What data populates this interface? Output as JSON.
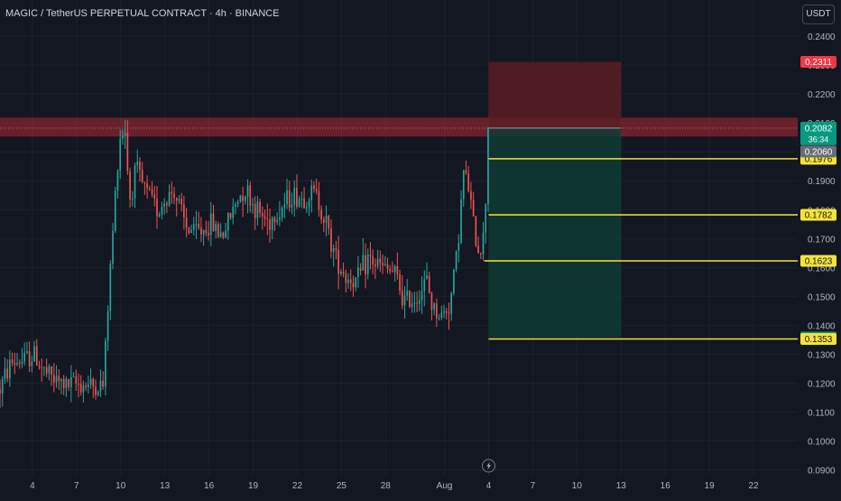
{
  "header": {
    "title": "MAGIC / TetherUS PERPETUAL CONTRACT · 4h · BINANCE",
    "currency": "USDT"
  },
  "colors": {
    "background": "#131722",
    "up": "#26a69a",
    "down": "#ef5350",
    "axis_text": "#b2b5be",
    "level_line": "#f5e33a",
    "resistance_zone": "#b22833",
    "stop_zone": "#5b1d24",
    "target_zone": "#0f3b33"
  },
  "chart_data": {
    "type": "candlestick",
    "title": "MAGIC / TetherUS PERPETUAL CONTRACT · 4h · BINANCE",
    "ylim": [
      0.088,
      0.2525
    ],
    "y_ticks": [
      "0.0900",
      "0.1000",
      "0.1100",
      "0.1200",
      "0.1300",
      "0.1400",
      "0.1500",
      "0.1600",
      "0.1700",
      "0.1800",
      "0.1900",
      "0.2000",
      "0.2100",
      "0.2200",
      "0.2300",
      "0.2400"
    ],
    "x_ticks": [
      "4",
      "7",
      "10",
      "13",
      "16",
      "19",
      "22",
      "25",
      "28",
      "Aug",
      "4",
      "7",
      "10",
      "13",
      "16",
      "19",
      "22"
    ],
    "x_tick_days": [
      4,
      7,
      10,
      13,
      16,
      19,
      22,
      25,
      28,
      32,
      35,
      38,
      41,
      44,
      47,
      50,
      53
    ],
    "x_range_days": [
      1.8,
      56.0
    ],
    "last_candle_day": 35.0,
    "candles_per_day": 6,
    "anchors": [
      [
        1.8,
        0.118
      ],
      [
        2.5,
        0.127
      ],
      [
        3.5,
        0.128
      ],
      [
        4.1,
        0.13
      ],
      [
        4.8,
        0.124
      ],
      [
        5.5,
        0.121
      ],
      [
        6.4,
        0.119
      ],
      [
        7.2,
        0.12
      ],
      [
        8.0,
        0.119
      ],
      [
        8.8,
        0.119
      ],
      [
        9.3,
        0.16
      ],
      [
        9.9,
        0.205
      ],
      [
        10.3,
        0.208
      ],
      [
        10.6,
        0.183
      ],
      [
        11.0,
        0.194
      ],
      [
        11.6,
        0.187
      ],
      [
        12.5,
        0.18
      ],
      [
        13.6,
        0.187
      ],
      [
        14.4,
        0.174
      ],
      [
        15.2,
        0.172
      ],
      [
        16.2,
        0.175
      ],
      [
        16.9,
        0.171
      ],
      [
        17.8,
        0.182
      ],
      [
        18.4,
        0.188
      ],
      [
        19.2,
        0.18
      ],
      [
        20.0,
        0.176
      ],
      [
        20.8,
        0.18
      ],
      [
        21.6,
        0.185
      ],
      [
        22.4,
        0.184
      ],
      [
        23.2,
        0.186
      ],
      [
        23.8,
        0.178
      ],
      [
        24.5,
        0.165
      ],
      [
        25.3,
        0.157
      ],
      [
        26.0,
        0.155
      ],
      [
        26.8,
        0.163
      ],
      [
        27.7,
        0.16
      ],
      [
        28.6,
        0.158
      ],
      [
        29.3,
        0.148
      ],
      [
        30.1,
        0.15
      ],
      [
        30.8,
        0.155
      ],
      [
        31.2,
        0.146
      ],
      [
        31.8,
        0.143
      ],
      [
        32.4,
        0.148
      ],
      [
        32.9,
        0.168
      ],
      [
        33.3,
        0.193
      ],
      [
        33.7,
        0.186
      ],
      [
        34.0,
        0.173
      ],
      [
        34.4,
        0.165
      ],
      [
        34.7,
        0.172
      ],
      [
        35.0,
        0.208
      ]
    ],
    "current_price": "0.2082",
    "countdown": "36:34",
    "secondary_price": "0.2060",
    "price_labels": [
      {
        "value": 0.2311,
        "text": "0.2311",
        "color": "#f23645"
      },
      {
        "value": 0.1976,
        "text": "0.1976",
        "color": "#f5e33a"
      },
      {
        "value": 0.1782,
        "text": "0.1782",
        "color": "#f5e33a"
      },
      {
        "value": 0.1623,
        "text": "0.1623",
        "color": "#f5e33a"
      },
      {
        "value": 0.1358,
        "text": "0.1358",
        "color": "#089981"
      },
      {
        "value": 0.1353,
        "text": "0.1353",
        "color": "#f5e33a"
      }
    ],
    "level_lines": [
      {
        "value": 0.1976,
        "start_day": 35.0
      },
      {
        "value": 0.1782,
        "start_day": 35.0
      },
      {
        "value": 0.1623,
        "start_day": 34.7
      },
      {
        "value": 0.1353,
        "start_day": 35.0
      }
    ],
    "resistance_zone": {
      "top": 0.2118,
      "bottom": 0.2053
    },
    "position": {
      "start_day": 35.0,
      "end_day": 44.0,
      "entry": 0.2082,
      "stop": 0.2311,
      "target": 0.1358
    }
  }
}
